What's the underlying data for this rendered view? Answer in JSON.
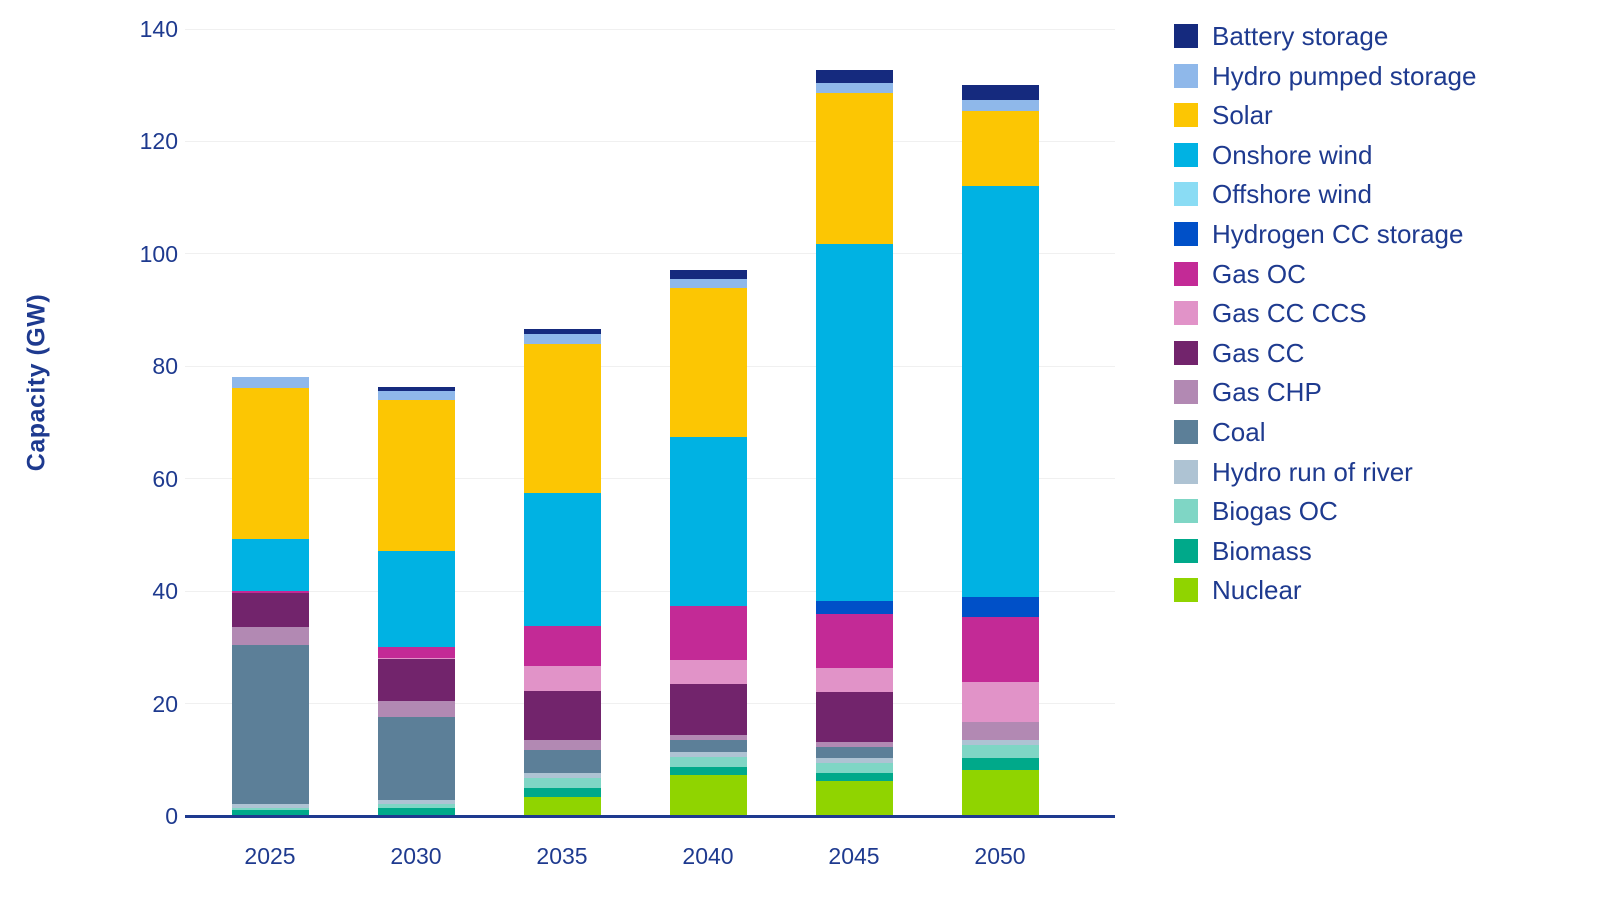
{
  "chart_data": {
    "type": "bar",
    "subtype": "stacked",
    "title": "",
    "xlabel": "",
    "ylabel": "Capacity (GW)",
    "categories": [
      "2025",
      "2030",
      "2035",
      "2040",
      "2045",
      "2050"
    ],
    "y_ticks": [
      0,
      20,
      40,
      60,
      80,
      100,
      120,
      140
    ],
    "ylim": [
      0,
      140
    ],
    "grid": "horizontal-faint",
    "legend_position": "right",
    "legend_order_top_to_bottom": [
      "Battery storage",
      "Hydro pumped storage",
      "Solar",
      "Onshore wind",
      "Offshore wind",
      "Hydrogen CC storage",
      "Gas OC",
      "Gas CC CCS",
      "Gas CC",
      "Gas CHP",
      "Coal",
      "Hydro run of river",
      "Biogas OC",
      "Biomass",
      "Nuclear"
    ],
    "series_bottom_to_top": [
      {
        "name": "Nuclear",
        "slug": "nuclear",
        "color": "#90d400",
        "values": [
          0,
          0,
          3.4,
          7.3,
          6.2,
          8.2
        ]
      },
      {
        "name": "Biomass",
        "slug": "biomass",
        "color": "#00a98a",
        "values": [
          1.0,
          1.4,
          1.6,
          1.4,
          1.5,
          2.1
        ]
      },
      {
        "name": "Biogas OC",
        "slug": "biogas-oc",
        "color": "#7fd6c5",
        "values": [
          0.4,
          0.7,
          1.8,
          1.8,
          1.8,
          2.3
        ]
      },
      {
        "name": "Hydro run of river",
        "slug": "hydro-run-of-river",
        "color": "#aec3d3",
        "values": [
          0.8,
          0.8,
          0.9,
          0.9,
          0.9,
          0.9
        ]
      },
      {
        "name": "Coal",
        "slug": "coal",
        "color": "#5c7f98",
        "values": [
          28.3,
          14.8,
          4.1,
          2.1,
          1.8,
          0
        ]
      },
      {
        "name": "Gas CHP",
        "slug": "gas-chp",
        "color": "#b289b3",
        "values": [
          3.2,
          2.7,
          1.8,
          0.9,
          1.0,
          3.3
        ]
      },
      {
        "name": "Gas CC",
        "slug": "gas-cc",
        "color": "#72246c",
        "values": [
          6.0,
          7.5,
          8.6,
          9.1,
          8.9,
          0
        ]
      },
      {
        "name": "Gas CC CCS",
        "slug": "gas-cc-ccs",
        "color": "#e193c8",
        "values": [
          0,
          0.3,
          4.5,
          4.3,
          4.3,
          7.0
        ]
      },
      {
        "name": "Gas OC",
        "slug": "gas-oc",
        "color": "#c32a96",
        "values": [
          0.3,
          1.8,
          7.1,
          9.5,
          9.5,
          11.6
        ]
      },
      {
        "name": "Hydrogen CC storage",
        "slug": "hydrogen-cc-storage",
        "color": "#0050c8",
        "values": [
          0,
          0,
          0,
          0,
          2.3,
          3.5
        ]
      },
      {
        "name": "Offshore wind",
        "slug": "offshore-wind",
        "color": "#8adcf4",
        "values": [
          0,
          0,
          0,
          0,
          0,
          0
        ]
      },
      {
        "name": "Onshore wind",
        "slug": "onshore-wind",
        "color": "#00b2e3",
        "values": [
          9.3,
          17.2,
          23.7,
          30.2,
          63.5,
          73.2
        ]
      },
      {
        "name": "Solar",
        "slug": "solar",
        "color": "#fcc603",
        "values": [
          26.8,
          26.8,
          26.5,
          26.5,
          27.0,
          13.4
        ]
      },
      {
        "name": "Hydro pumped storage",
        "slug": "hydro-pumped-storage",
        "color": "#8fb8ea",
        "values": [
          2.0,
          1.6,
          1.8,
          1.5,
          1.8,
          1.8
        ]
      },
      {
        "name": "Battery storage",
        "slug": "battery-storage",
        "color": "#152a7e",
        "values": [
          0,
          0.7,
          0.9,
          1.7,
          2.2,
          2.7
        ]
      }
    ],
    "totals": [
      78.1,
      76.3,
      86.7,
      97.2,
      132.7,
      130.0
    ]
  },
  "colors": {
    "text_navy": "#1e3a8f",
    "axis_line": "#1e3a8f",
    "gridline": "#f0f0f0",
    "background": "#ffffff"
  }
}
